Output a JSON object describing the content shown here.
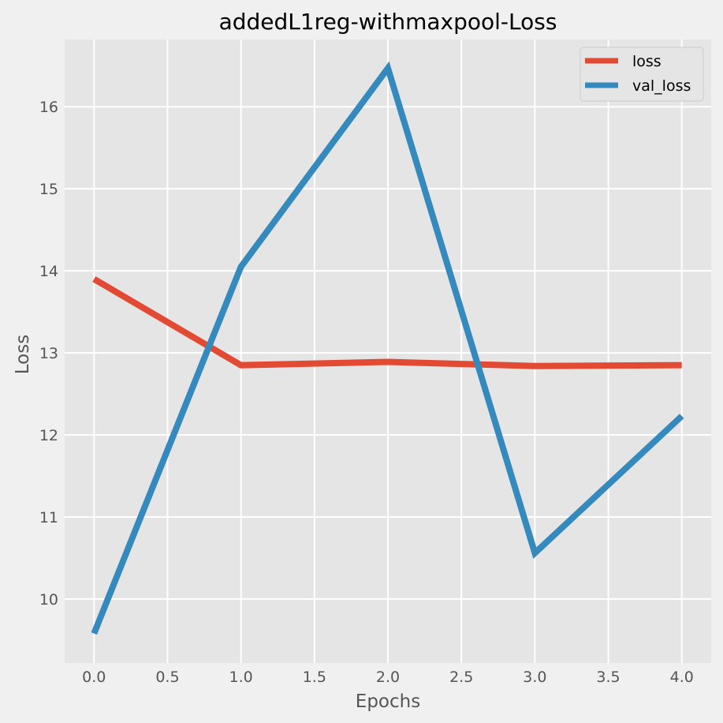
{
  "chart_data": {
    "type": "line",
    "title": "addedL1reg-withmaxpool-Loss",
    "xlabel": "Epochs",
    "ylabel": "Loss",
    "x": [
      0,
      1,
      2,
      3,
      4
    ],
    "xlim": [
      -0.2,
      4.2
    ],
    "ylim": [
      9.22,
      16.82
    ],
    "xticks": [
      "0.0",
      "0.5",
      "1.0",
      "1.5",
      "2.0",
      "2.5",
      "3.0",
      "3.5",
      "4.0"
    ],
    "yticks": [
      "10",
      "11",
      "12",
      "13",
      "14",
      "15",
      "16"
    ],
    "grid": true,
    "legend_position": "top-right",
    "series": [
      {
        "name": "loss",
        "color": "#e24a33",
        "values": [
          13.9,
          12.85,
          12.89,
          12.84,
          12.85
        ]
      },
      {
        "name": "val_loss",
        "color": "#348abd",
        "values": [
          9.58,
          14.05,
          16.47,
          10.56,
          12.23
        ]
      }
    ]
  }
}
